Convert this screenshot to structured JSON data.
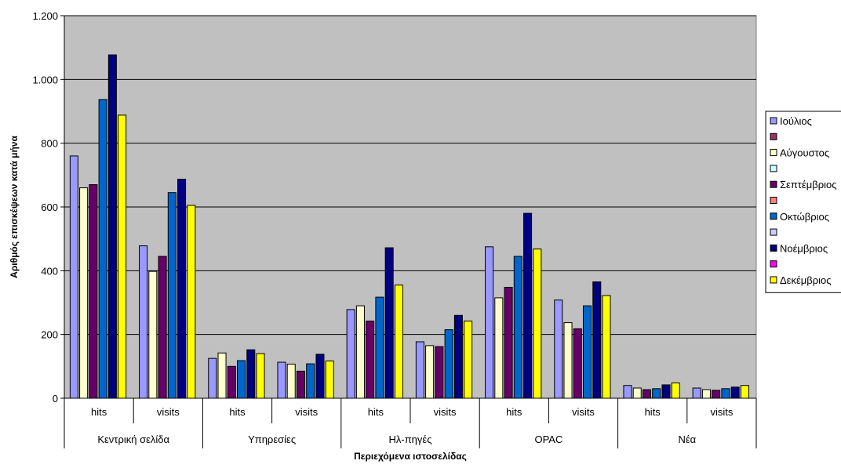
{
  "chart_data": {
    "type": "bar",
    "title": "",
    "xlabel": "Περιεχόμενα ιστοσελίδας",
    "ylabel": "Αριθμός επισκέψεων κατά μήνα",
    "ylim": [
      0,
      1200
    ],
    "yticks": [
      0,
      200,
      400,
      600,
      800,
      1000,
      1200
    ],
    "ytick_labels": [
      "0",
      "200",
      "400",
      "600",
      "800",
      "1.000",
      "1.200"
    ],
    "grid": true,
    "legend_position": "right",
    "plot_background": "#c0c0c0",
    "groups": [
      "Κεντρική σελίδα",
      "Υπηρεσίες",
      "Ηλ-πηγές",
      "OPAC",
      "Νέα"
    ],
    "subcategories": [
      "hits",
      "visits"
    ],
    "series": [
      {
        "name": "Ιούλιος",
        "color": "#9999ff",
        "values": [
          760,
          478,
          125,
          113,
          278,
          177,
          475,
          308,
          40,
          32
        ]
      },
      {
        "name": "",
        "color": "#993366",
        "values": [
          null,
          null,
          null,
          null,
          null,
          null,
          null,
          null,
          null,
          null
        ]
      },
      {
        "name": "Αύγουστος",
        "color": "#ffffcc",
        "values": [
          660,
          398,
          142,
          107,
          290,
          165,
          315,
          237,
          32,
          27
        ]
      },
      {
        "name": "",
        "color": "#ccffff",
        "values": [
          null,
          null,
          null,
          null,
          null,
          null,
          null,
          null,
          null,
          null
        ]
      },
      {
        "name": "Σεπτέμβριος",
        "color": "#660066",
        "values": [
          670,
          445,
          100,
          85,
          242,
          162,
          348,
          218,
          27,
          25
        ]
      },
      {
        "name": "",
        "color": "#ff8080",
        "values": [
          null,
          null,
          null,
          null,
          null,
          null,
          null,
          null,
          null,
          null
        ]
      },
      {
        "name": "Οκτώβριος",
        "color": "#0066cc",
        "values": [
          937,
          645,
          118,
          108,
          317,
          215,
          445,
          290,
          30,
          30
        ]
      },
      {
        "name": "",
        "color": "#ccccff",
        "values": [
          null,
          null,
          null,
          null,
          null,
          null,
          null,
          null,
          null,
          null
        ]
      },
      {
        "name": "Νοέμβριος",
        "color": "#000080",
        "values": [
          1077,
          687,
          152,
          138,
          472,
          260,
          580,
          365,
          42,
          35
        ]
      },
      {
        "name": "",
        "color": "#ff00ff",
        "values": [
          null,
          null,
          null,
          null,
          null,
          null,
          null,
          null,
          null,
          null
        ]
      },
      {
        "name": "Δεκέμβριος",
        "color": "#ffff00",
        "values": [
          888,
          605,
          140,
          117,
          355,
          242,
          468,
          322,
          48,
          40
        ]
      }
    ]
  }
}
